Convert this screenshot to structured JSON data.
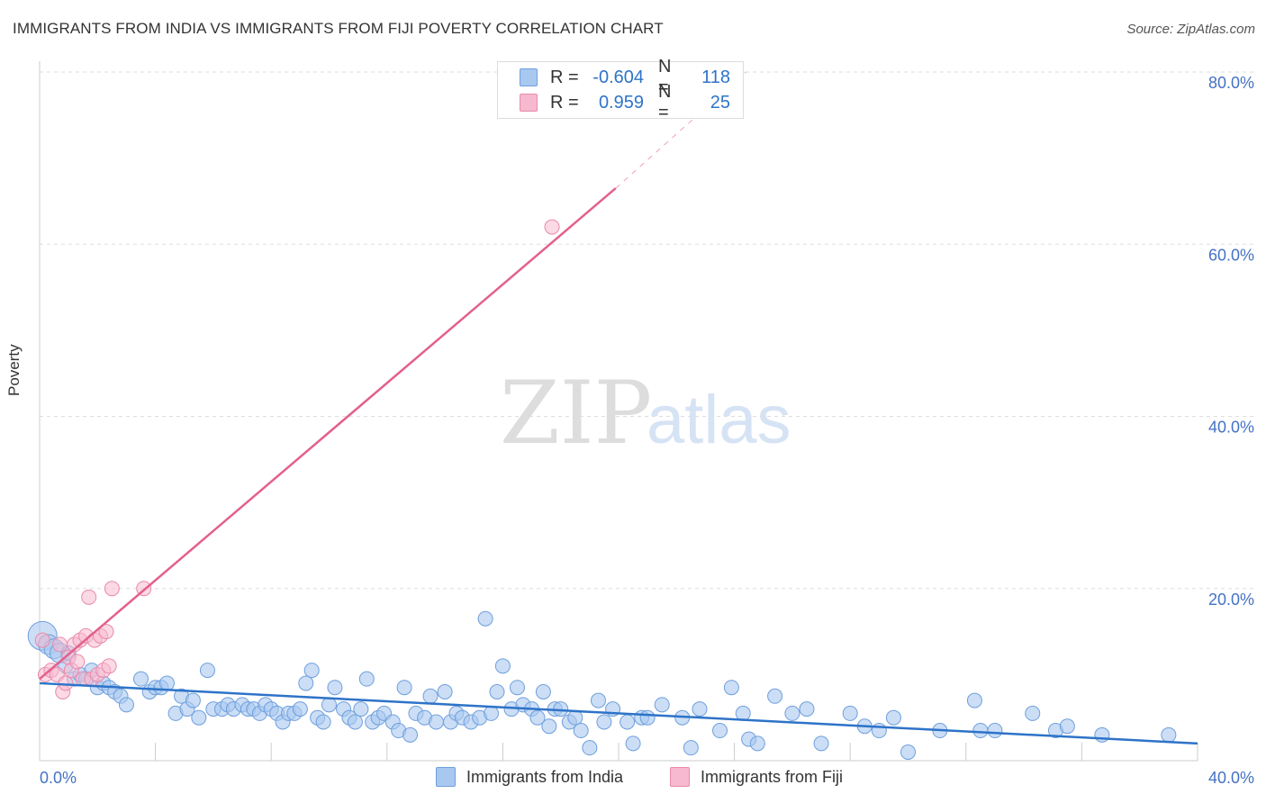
{
  "title": "IMMIGRANTS FROM INDIA VS IMMIGRANTS FROM FIJI POVERTY CORRELATION CHART",
  "source": "Source: ZipAtlas.com",
  "watermark": {
    "zip": "ZIP",
    "atlas": "atlas"
  },
  "colors": {
    "india_fill": "#a9c8f0",
    "india_stroke": "#6f9fdc",
    "india_line": "#2e73c8",
    "fiji_fill": "#f7b9cf",
    "fiji_stroke": "#e98aab",
    "fiji_line": "#e3608c",
    "axis_text": "#4472c4",
    "grid": "#dddddd"
  },
  "legend_top": {
    "rows": [
      {
        "r_label": "R =",
        "r_value": "-0.604",
        "n_label": "N =",
        "n_value": "118"
      },
      {
        "r_label": "R =",
        "r_value": "0.959",
        "n_label": "N =",
        "n_value": "25"
      }
    ]
  },
  "legend_bottom": {
    "india": "Immigrants from India",
    "fiji": "Immigrants from Fiji"
  },
  "chart_data": {
    "type": "scatter",
    "title": "IMMIGRANTS FROM INDIA VS IMMIGRANTS FROM FIJI POVERTY CORRELATION CHART",
    "xlabel": "",
    "ylabel": "Poverty",
    "xlim": [
      0,
      40
    ],
    "ylim": [
      0,
      80
    ],
    "x_tick_labels": [
      {
        "value": 0,
        "label": "0.0%"
      },
      {
        "value": 40,
        "label": "40.0%"
      }
    ],
    "y_tick_labels": [
      {
        "value": 20,
        "label": "20.0%"
      },
      {
        "value": 40,
        "label": "40.0%"
      },
      {
        "value": 60,
        "label": "60.0%"
      },
      {
        "value": 80,
        "label": "80.0%"
      }
    ],
    "series": [
      {
        "name": "Immigrants from India",
        "R": -0.604,
        "N": 118,
        "trend": {
          "x0": 0,
          "y0": 9.0,
          "x1": 40,
          "y1": 2.0
        },
        "points": [
          [
            0.1,
            14.5
          ],
          [
            0.3,
            13.5
          ],
          [
            0.5,
            13.0
          ],
          [
            0.7,
            12.5
          ],
          [
            0.9,
            11.0
          ],
          [
            1.0,
            12.5
          ],
          [
            1.2,
            9.5
          ],
          [
            1.4,
            10.0
          ],
          [
            1.6,
            9.5
          ],
          [
            1.8,
            10.5
          ],
          [
            2.0,
            8.5
          ],
          [
            2.2,
            9.0
          ],
          [
            2.4,
            8.5
          ],
          [
            2.6,
            8.0
          ],
          [
            2.8,
            7.5
          ],
          [
            3.0,
            6.5
          ],
          [
            3.5,
            9.5
          ],
          [
            3.8,
            8.0
          ],
          [
            4.0,
            8.5
          ],
          [
            4.2,
            8.5
          ],
          [
            4.4,
            9.0
          ],
          [
            4.7,
            5.5
          ],
          [
            4.9,
            7.5
          ],
          [
            5.1,
            6.0
          ],
          [
            5.3,
            7.0
          ],
          [
            5.5,
            5.0
          ],
          [
            5.8,
            10.5
          ],
          [
            6.0,
            6.0
          ],
          [
            6.3,
            6.0
          ],
          [
            6.5,
            6.5
          ],
          [
            6.7,
            6.0
          ],
          [
            7.0,
            6.5
          ],
          [
            7.2,
            6.0
          ],
          [
            7.4,
            6.0
          ],
          [
            7.6,
            5.5
          ],
          [
            7.8,
            6.5
          ],
          [
            8.0,
            6.0
          ],
          [
            8.2,
            5.5
          ],
          [
            8.4,
            4.5
          ],
          [
            8.6,
            5.5
          ],
          [
            8.8,
            5.5
          ],
          [
            9.0,
            6.0
          ],
          [
            9.2,
            9.0
          ],
          [
            9.4,
            10.5
          ],
          [
            9.6,
            5.0
          ],
          [
            9.8,
            4.5
          ],
          [
            10.0,
            6.5
          ],
          [
            10.2,
            8.5
          ],
          [
            10.5,
            6.0
          ],
          [
            10.7,
            5.0
          ],
          [
            10.9,
            4.5
          ],
          [
            11.1,
            6.0
          ],
          [
            11.3,
            9.5
          ],
          [
            11.5,
            4.5
          ],
          [
            11.7,
            5.0
          ],
          [
            11.9,
            5.5
          ],
          [
            12.2,
            4.5
          ],
          [
            12.4,
            3.5
          ],
          [
            12.6,
            8.5
          ],
          [
            12.8,
            3.0
          ],
          [
            13.0,
            5.5
          ],
          [
            13.3,
            5.0
          ],
          [
            13.5,
            7.5
          ],
          [
            13.7,
            4.5
          ],
          [
            14.0,
            8.0
          ],
          [
            14.2,
            4.5
          ],
          [
            14.4,
            5.5
          ],
          [
            14.6,
            5.0
          ],
          [
            14.9,
            4.5
          ],
          [
            15.2,
            5.0
          ],
          [
            15.4,
            16.5
          ],
          [
            15.6,
            5.5
          ],
          [
            15.8,
            8.0
          ],
          [
            16.0,
            11.0
          ],
          [
            16.3,
            6.0
          ],
          [
            16.5,
            8.5
          ],
          [
            16.7,
            6.5
          ],
          [
            17.0,
            6.0
          ],
          [
            17.2,
            5.0
          ],
          [
            17.4,
            8.0
          ],
          [
            17.6,
            4.0
          ],
          [
            17.8,
            6.0
          ],
          [
            18.0,
            6.0
          ],
          [
            18.3,
            4.5
          ],
          [
            18.5,
            5.0
          ],
          [
            18.7,
            3.5
          ],
          [
            19.0,
            1.5
          ],
          [
            19.3,
            7.0
          ],
          [
            19.5,
            4.5
          ],
          [
            19.8,
            6.0
          ],
          [
            20.3,
            4.5
          ],
          [
            20.5,
            2.0
          ],
          [
            20.8,
            5.0
          ],
          [
            21.0,
            5.0
          ],
          [
            21.5,
            6.5
          ],
          [
            22.2,
            5.0
          ],
          [
            22.5,
            1.5
          ],
          [
            22.8,
            6.0
          ],
          [
            23.5,
            3.5
          ],
          [
            23.9,
            8.5
          ],
          [
            24.3,
            5.5
          ],
          [
            24.5,
            2.5
          ],
          [
            24.8,
            2.0
          ],
          [
            25.4,
            7.5
          ],
          [
            26.0,
            5.5
          ],
          [
            26.5,
            6.0
          ],
          [
            27.0,
            2.0
          ],
          [
            28.0,
            5.5
          ],
          [
            28.5,
            4.0
          ],
          [
            29.0,
            3.5
          ],
          [
            29.5,
            5.0
          ],
          [
            30.0,
            1.0
          ],
          [
            31.1,
            3.5
          ],
          [
            32.3,
            7.0
          ],
          [
            32.5,
            3.5
          ],
          [
            33.0,
            3.5
          ],
          [
            34.3,
            5.5
          ],
          [
            35.1,
            3.5
          ],
          [
            35.5,
            4.0
          ],
          [
            36.7,
            3.0
          ],
          [
            39.0,
            3.0
          ]
        ]
      },
      {
        "name": "Immigrants from Fiji",
        "R": 0.959,
        "N": 25,
        "trend": {
          "x0": 0,
          "y0": 9.5,
          "x1": 19.9,
          "y1": 66.5,
          "dash_x1": 24.4,
          "dash_y1": 80.0
        },
        "points": [
          [
            0.1,
            14.0
          ],
          [
            0.2,
            10.0
          ],
          [
            0.4,
            10.5
          ],
          [
            0.6,
            10.0
          ],
          [
            0.7,
            13.5
          ],
          [
            0.8,
            8.0
          ],
          [
            0.9,
            9.0
          ],
          [
            1.0,
            12.0
          ],
          [
            1.1,
            10.5
          ],
          [
            1.2,
            13.5
          ],
          [
            1.3,
            11.5
          ],
          [
            1.4,
            14.0
          ],
          [
            1.5,
            9.5
          ],
          [
            1.6,
            14.5
          ],
          [
            1.7,
            19.0
          ],
          [
            1.8,
            9.5
          ],
          [
            1.9,
            14.0
          ],
          [
            2.0,
            10.0
          ],
          [
            2.1,
            14.5
          ],
          [
            2.2,
            10.5
          ],
          [
            2.3,
            15.0
          ],
          [
            2.4,
            11.0
          ],
          [
            2.5,
            20.0
          ],
          [
            3.6,
            20.0
          ],
          [
            17.7,
            62.0
          ]
        ]
      }
    ]
  }
}
